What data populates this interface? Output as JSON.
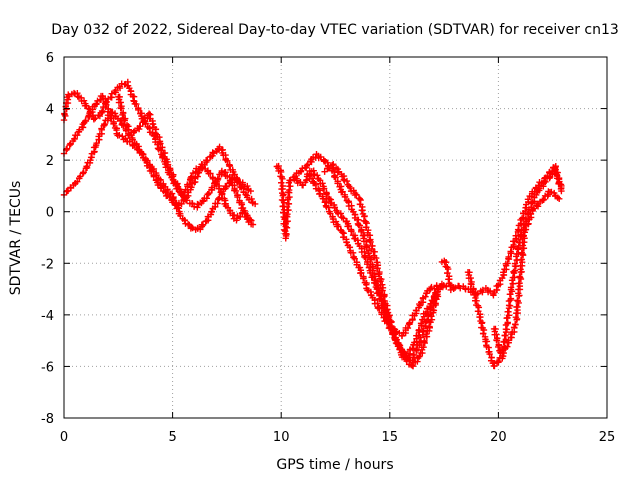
{
  "chart_data": {
    "type": "scatter",
    "title": "Day 032 of 2022, Sidereal Day-to-day VTEC variation (SDTVAR) for receiver cn13",
    "xlabel": "GPS time / hours",
    "ylabel": "SDTVAR / TECUs",
    "xlim": [
      0,
      25
    ],
    "ylim": [
      -8,
      6
    ],
    "x_ticks": [
      0,
      5,
      10,
      15,
      20,
      25
    ],
    "x_tick_labels": [
      "0",
      "5",
      "10",
      "15",
      "20",
      "25"
    ],
    "y_ticks": [
      -8,
      -6,
      -4,
      -2,
      0,
      2,
      4,
      6
    ],
    "y_tick_labels": [
      "-8",
      "-6",
      "-4",
      "-2",
      "0",
      "2",
      "4",
      "6"
    ],
    "grid": true,
    "marker": "+",
    "color": "#ff0000",
    "series": [
      {
        "name": "track-1",
        "x": [
          0.0,
          0.3,
          0.6,
          1.0,
          1.4,
          1.8,
          2.1,
          2.5,
          2.8,
          3.2,
          3.6,
          4.0,
          4.4,
          4.8,
          5.2,
          5.6,
          6.0,
          6.4,
          6.8,
          7.2,
          7.6,
          8.0,
          8.4,
          8.8
        ],
        "y": [
          2.3,
          2.6,
          3.0,
          3.5,
          4.1,
          4.5,
          3.8,
          3.0,
          2.8,
          2.6,
          2.2,
          1.6,
          1.0,
          0.6,
          0.2,
          0.5,
          1.2,
          1.8,
          2.2,
          2.5,
          1.8,
          1.2,
          0.6,
          0.3
        ]
      },
      {
        "name": "track-2",
        "x": [
          0.0,
          0.2,
          0.5,
          0.8,
          1.1,
          1.4,
          1.7,
          2.0,
          2.3,
          2.6,
          2.9,
          3.3,
          3.7,
          4.1,
          4.5,
          4.9,
          5.3,
          5.7,
          6.1,
          6.5,
          6.9,
          7.3,
          7.7,
          8.1,
          8.5
        ],
        "y": [
          3.6,
          4.5,
          4.6,
          4.4,
          4.0,
          3.6,
          3.8,
          4.3,
          4.6,
          4.9,
          5.0,
          4.2,
          3.5,
          3.0,
          2.2,
          1.4,
          0.8,
          0.4,
          0.2,
          0.5,
          1.0,
          1.6,
          1.2,
          0.4,
          -0.4
        ]
      },
      {
        "name": "track-3",
        "x": [
          0.0,
          0.3,
          0.6,
          0.9,
          1.2,
          1.5,
          1.8,
          2.2,
          2.6,
          3.0,
          3.4,
          3.8,
          4.2,
          4.6,
          5.0,
          5.4,
          5.8,
          6.2,
          6.6,
          7.0,
          7.4,
          7.8,
          8.2,
          8.6
        ],
        "y": [
          0.7,
          0.9,
          1.2,
          1.5,
          2.0,
          2.6,
          3.3,
          3.9,
          3.5,
          3.0,
          2.5,
          2.0,
          1.5,
          1.0,
          0.6,
          -0.2,
          -0.6,
          -0.7,
          -0.3,
          0.3,
          0.9,
          1.3,
          1.1,
          0.8
        ]
      },
      {
        "name": "track-4",
        "x": [
          2.5,
          2.8,
          3.1,
          3.5,
          3.9,
          4.3,
          4.7,
          5.1,
          5.5,
          5.9,
          6.3,
          6.7,
          7.1,
          7.5,
          7.9,
          8.3,
          8.7
        ],
        "y": [
          4.5,
          3.5,
          3.0,
          3.3,
          3.8,
          3.0,
          2.0,
          1.2,
          0.6,
          1.4,
          1.8,
          1.5,
          1.0,
          0.2,
          -0.3,
          0.0,
          -0.5
        ]
      },
      {
        "name": "track-5",
        "x": [
          9.8,
          10.0,
          10.2,
          10.4,
          10.8,
          11.2,
          11.6,
          12.0,
          12.4,
          12.8,
          13.2,
          13.6,
          14.0,
          14.4,
          14.8,
          15.2,
          15.6,
          16.0,
          16.4,
          16.8,
          17.2
        ],
        "y": [
          1.8,
          1.5,
          -1.0,
          1.2,
          1.5,
          1.8,
          2.2,
          2.0,
          1.5,
          0.8,
          0.2,
          -0.5,
          -1.5,
          -2.8,
          -3.8,
          -4.8,
          -5.5,
          -5.8,
          -5.0,
          -4.0,
          -3.0
        ]
      },
      {
        "name": "track-6",
        "x": [
          10.6,
          11.0,
          11.4,
          11.8,
          12.2,
          12.6,
          13.0,
          13.4,
          13.8,
          14.2,
          14.6,
          15.0,
          15.4,
          15.8,
          16.2,
          16.6,
          17.0,
          17.4
        ],
        "y": [
          1.3,
          1.0,
          1.6,
          1.2,
          0.5,
          0.0,
          -0.4,
          -1.0,
          -1.6,
          -2.5,
          -3.5,
          -4.5,
          -5.2,
          -5.6,
          -5.0,
          -4.0,
          -3.4,
          -2.8
        ]
      },
      {
        "name": "track-7",
        "x": [
          11.2,
          11.6,
          12.0,
          12.4,
          12.8,
          13.2,
          13.6,
          14.0,
          14.4,
          14.8,
          15.2,
          15.6,
          16.0,
          16.4,
          16.8,
          17.2,
          17.6
        ],
        "y": [
          1.5,
          1.0,
          0.4,
          -0.3,
          -0.8,
          -1.5,
          -2.2,
          -3.0,
          -3.6,
          -4.2,
          -4.6,
          -4.8,
          -4.2,
          -3.6,
          -3.0,
          -2.9,
          -2.9
        ]
      },
      {
        "name": "track-8",
        "x": [
          12.0,
          12.4,
          12.8,
          13.2,
          13.6,
          14.0,
          14.4,
          14.8,
          15.2,
          15.6,
          16.0,
          16.4,
          16.8,
          17.2
        ],
        "y": [
          1.6,
          1.8,
          1.4,
          0.9,
          0.5,
          -0.8,
          -2.0,
          -3.5,
          -4.8,
          -5.6,
          -6.0,
          -5.6,
          -4.5,
          -3.2
        ]
      },
      {
        "name": "track-9",
        "x": [
          17.4,
          17.6,
          17.8,
          18.2,
          18.6,
          19.0,
          19.4,
          19.8,
          20.2,
          20.6,
          21.0,
          21.4,
          21.8,
          22.2,
          22.6,
          22.9
        ],
        "y": [
          -1.9,
          -2.0,
          -3.0,
          -2.9,
          -3.0,
          -3.2,
          -3.0,
          -3.2,
          -2.5,
          -1.5,
          -0.5,
          0.5,
          1.0,
          1.3,
          1.8,
          0.8
        ]
      },
      {
        "name": "track-10",
        "x": [
          18.6,
          19.0,
          19.4,
          19.8,
          20.2,
          20.6,
          21.0,
          21.4,
          21.8,
          22.2,
          22.6,
          22.9
        ],
        "y": [
          -2.3,
          -3.5,
          -5.0,
          -6.0,
          -5.6,
          -3.0,
          -1.0,
          0.0,
          0.8,
          1.2,
          1.6,
          1.0
        ]
      },
      {
        "name": "track-11",
        "x": [
          19.8,
          20.1,
          20.4,
          20.8,
          21.2,
          21.6,
          22.0,
          22.4,
          22.8
        ],
        "y": [
          -4.5,
          -5.5,
          -5.2,
          -4.4,
          -0.8,
          0.1,
          0.4,
          0.8,
          0.5
        ]
      }
    ]
  }
}
